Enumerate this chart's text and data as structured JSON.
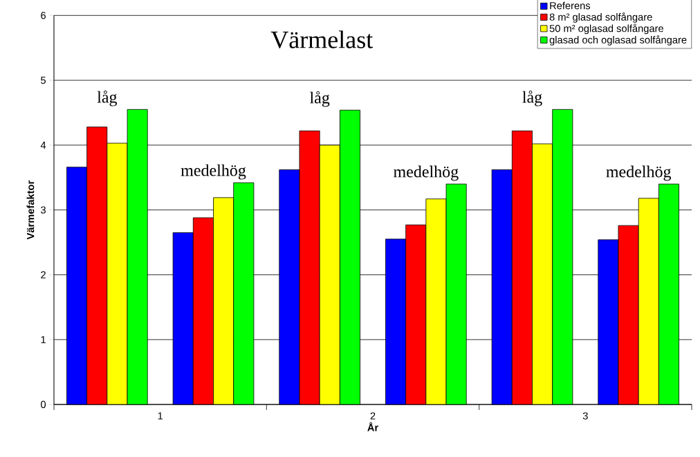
{
  "chart_data": {
    "type": "bar",
    "title": "Värmelast",
    "xlabel": "År",
    "ylabel": "Värmefaktor",
    "x": [
      0.75,
      1.25,
      1.75,
      2.25,
      2.75,
      3.25
    ],
    "series": [
      {
        "name": "Referens",
        "color": "#0000ff",
        "values": [
          3.66,
          2.65,
          3.62,
          2.55,
          3.62,
          2.54
        ]
      },
      {
        "name": "8 m² glasad solfångare",
        "color": "#ff0000",
        "values": [
          4.28,
          2.88,
          4.22,
          2.77,
          4.22,
          2.76
        ]
      },
      {
        "name": "50 m² oglasad solfångare",
        "color": "#ffff00",
        "values": [
          4.03,
          3.19,
          4.0,
          3.17,
          4.02,
          3.18
        ]
      },
      {
        "name": "glasad och oglasad solfångare",
        "color": "#00ff00",
        "values": [
          4.55,
          3.42,
          4.54,
          3.4,
          4.55,
          3.4
        ]
      }
    ],
    "xlim": [
      0.5,
      3.5
    ],
    "xticks": [
      {
        "value": 0.5,
        "label": null
      },
      {
        "value": 1,
        "label": "1"
      },
      {
        "value": 1.5,
        "label": null
      },
      {
        "value": 2,
        "label": "2"
      },
      {
        "value": 2.5,
        "label": null
      },
      {
        "value": 3,
        "label": "3"
      },
      {
        "value": 3.5,
        "label": null
      }
    ],
    "ylim": [
      0,
      6
    ],
    "yticks": [
      0,
      1,
      2,
      3,
      4,
      5,
      6
    ],
    "grid": "y",
    "legend": "top right",
    "annotations": [
      "låg",
      "medelhög",
      "låg",
      "medelhög",
      "låg",
      "medelhög"
    ]
  }
}
